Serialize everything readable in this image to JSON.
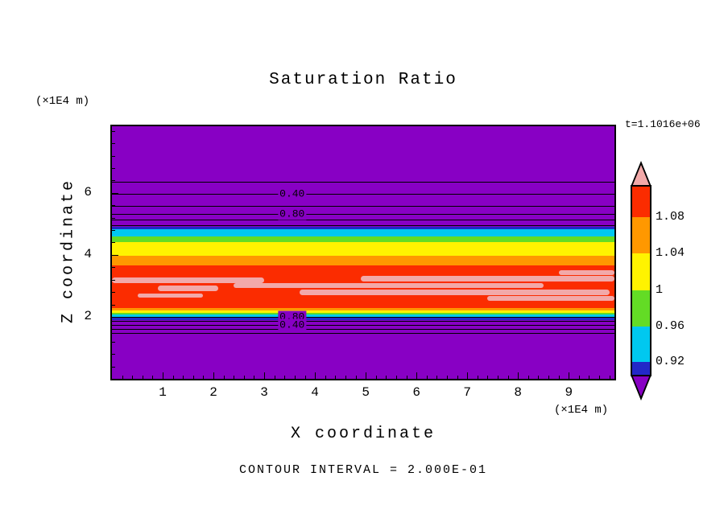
{
  "title": "Saturation Ratio",
  "annotations": {
    "time": "t=1.1016e+06",
    "y_axis_unit": "(×1E4 m)",
    "x_axis_unit": "(×1E4 m)",
    "contour_interval_note": "CONTOUR INTERVAL = 2.000E-01"
  },
  "axes": {
    "x_label": "X coordinate",
    "y_label": "Z coordinate"
  },
  "colorbar": {
    "labels": [
      "1.08",
      "1.04",
      "1",
      "0.96",
      "0.92"
    ],
    "segment_colors_top_to_bottom": [
      "#FB2C00",
      "#FF9800",
      "#FFF300",
      "#63DC25",
      "#00C8F0",
      "#2228C8"
    ],
    "arrow_top_color": "#F2A9A9",
    "arrow_bottom_color": "#8800C4"
  },
  "chart_data": {
    "type": "contour",
    "title": "Saturation Ratio",
    "xlabel": "X coordinate (×1E4 m)",
    "ylabel": "Z coordinate (×1E4 m)",
    "x_range": [
      0,
      9.9
    ],
    "z_range": [
      0,
      8.15
    ],
    "x_major_ticks": [
      1,
      2,
      3,
      4,
      5,
      6,
      7,
      8,
      9
    ],
    "z_major_ticks": [
      6,
      4,
      2
    ],
    "x_minor_step": 0.2,
    "z_minor_step": 0.4,
    "time_annotation": "t=1.1016e+06",
    "contour_interval": "2.000E-01",
    "colorbar_tick_values": [
      1.08,
      1.04,
      1.0,
      0.96,
      0.92
    ],
    "colors": {
      "purple": "#8800C4",
      "navy": "#2228C8",
      "cyan": "#00C8F0",
      "green": "#63DC25",
      "yellow": "#FFF300",
      "orange": "#FF9800",
      "red": "#FB2C00",
      "pink": "#F2A9A9"
    },
    "bands": [
      {
        "name": "purple-top",
        "color": "purple",
        "z_from": 4.9,
        "z_to": 8.15
      },
      {
        "name": "navy-top",
        "color": "navy",
        "z_from": 4.82,
        "z_to": 4.9
      },
      {
        "name": "cyan-top",
        "color": "cyan",
        "z_from": 4.6,
        "z_to": 4.82
      },
      {
        "name": "green-top",
        "color": "green",
        "z_from": 4.42,
        "z_to": 4.6
      },
      {
        "name": "yellow-band",
        "color": "yellow",
        "z_from": 3.98,
        "z_to": 4.42
      },
      {
        "name": "orange-band",
        "color": "orange",
        "z_from": 3.65,
        "z_to": 3.98
      },
      {
        "name": "red-band",
        "color": "red",
        "z_from": 2.28,
        "z_to": 3.65
      },
      {
        "name": "orange-low",
        "color": "orange",
        "z_from": 2.2,
        "z_to": 2.28
      },
      {
        "name": "yellow-low",
        "color": "yellow",
        "z_from": 2.12,
        "z_to": 2.2
      },
      {
        "name": "green-low",
        "color": "green",
        "z_from": 2.07,
        "z_to": 2.12
      },
      {
        "name": "cyan-low",
        "color": "cyan",
        "z_from": 1.97,
        "z_to": 2.07
      },
      {
        "name": "navy-low",
        "color": "navy",
        "z_from": 1.9,
        "z_to": 1.97
      },
      {
        "name": "purple-bottom",
        "color": "purple",
        "z_from": 0,
        "z_to": 1.9
      }
    ],
    "pink_streaks": [
      {
        "x_from": 0.0,
        "x_to": 3.0,
        "z_from": 3.08,
        "z_to": 3.28
      },
      {
        "x_from": 0.9,
        "x_to": 2.1,
        "z_from": 2.84,
        "z_to": 3.0
      },
      {
        "x_from": 2.4,
        "x_to": 8.5,
        "z_from": 2.92,
        "z_to": 3.1
      },
      {
        "x_from": 3.7,
        "x_to": 9.8,
        "z_from": 2.69,
        "z_to": 2.87
      },
      {
        "x_from": 4.9,
        "x_to": 9.9,
        "z_from": 3.15,
        "z_to": 3.33
      },
      {
        "x_from": 7.4,
        "x_to": 9.9,
        "z_from": 2.51,
        "z_to": 2.67
      },
      {
        "x_from": 0.5,
        "x_to": 1.8,
        "z_from": 2.61,
        "z_to": 2.74
      },
      {
        "x_from": 8.8,
        "x_to": 9.9,
        "z_from": 3.36,
        "z_to": 3.51
      }
    ],
    "contour_lines_z": [
      6.36,
      5.97,
      5.59,
      5.33,
      5.13,
      4.95,
      2.0,
      1.87,
      1.74,
      1.61,
      1.49
    ],
    "contour_labels": [
      {
        "text": "0.40",
        "x": 3.55,
        "z": 5.97
      },
      {
        "text": "0.80",
        "x": 3.55,
        "z": 5.33
      },
      {
        "text": "0.80",
        "x": 3.55,
        "z": 1.99
      },
      {
        "text": "0.40",
        "x": 3.55,
        "z": 1.74
      }
    ]
  }
}
